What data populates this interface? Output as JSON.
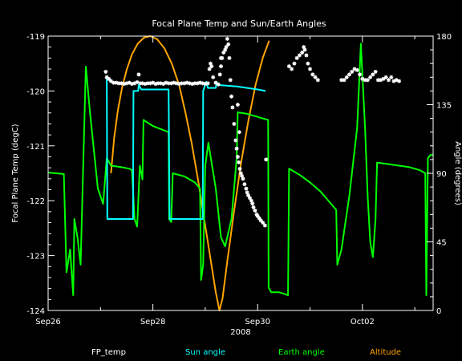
{
  "chart_data": {
    "type": "line",
    "title": "Focal Plane Temp and Sun/Earth Angles",
    "xlabel": "2008",
    "ylabel_left": "Focal Plane Temp (degC)",
    "ylabel_right": "Angle (degrees)",
    "x_unit": "days since Sep26 2008 00:00",
    "x_range": [
      0,
      7.35
    ],
    "x_ticks": [
      {
        "x": 0,
        "label": "Sep26"
      },
      {
        "x": 2,
        "label": "Sep28"
      },
      {
        "x": 4,
        "label": "Sep30"
      },
      {
        "x": 6,
        "label": "Oct02"
      }
    ],
    "ylim_left": [
      -124,
      -119
    ],
    "yticks_left": [
      -124,
      -123,
      -122,
      -121,
      -120,
      -119
    ],
    "ylim_right": [
      0,
      180
    ],
    "yticks_right": [
      0,
      45,
      90,
      135,
      180
    ],
    "grid": false,
    "legend_placement": "bottom",
    "series": [
      {
        "name": "FP_temp",
        "axis": "left",
        "style": "scatter",
        "color": "#ffffff",
        "points": [
          [
            1.1,
            -119.65
          ],
          [
            1.12,
            -119.75
          ],
          [
            1.16,
            -119.78
          ],
          [
            1.2,
            -119.82
          ],
          [
            1.25,
            -119.85
          ],
          [
            1.3,
            -119.85
          ],
          [
            1.35,
            -119.86
          ],
          [
            1.4,
            -119.86
          ],
          [
            1.45,
            -119.87
          ],
          [
            1.5,
            -119.86
          ],
          [
            1.55,
            -119.85
          ],
          [
            1.6,
            -119.87
          ],
          [
            1.65,
            -119.86
          ],
          [
            1.7,
            -119.84
          ],
          [
            1.73,
            -119.7
          ],
          [
            1.76,
            -119.86
          ],
          [
            1.8,
            -119.86
          ],
          [
            1.85,
            -119.87
          ],
          [
            1.9,
            -119.86
          ],
          [
            1.95,
            -119.86
          ],
          [
            2.0,
            -119.85
          ],
          [
            2.05,
            -119.87
          ],
          [
            2.1,
            -119.86
          ],
          [
            2.15,
            -119.86
          ],
          [
            2.2,
            -119.87
          ],
          [
            2.25,
            -119.85
          ],
          [
            2.3,
            -119.86
          ],
          [
            2.35,
            -119.86
          ],
          [
            2.4,
            -119.85
          ],
          [
            2.45,
            -119.86
          ],
          [
            2.5,
            -119.87
          ],
          [
            2.55,
            -119.86
          ],
          [
            2.6,
            -119.86
          ],
          [
            2.65,
            -119.85
          ],
          [
            2.7,
            -119.86
          ],
          [
            2.75,
            -119.87
          ],
          [
            2.8,
            -119.86
          ],
          [
            2.85,
            -119.86
          ],
          [
            2.9,
            -119.85
          ],
          [
            2.95,
            -119.86
          ],
          [
            3.0,
            -119.87
          ],
          [
            3.05,
            -119.86
          ],
          [
            3.08,
            -119.6
          ],
          [
            3.1,
            -119.5
          ],
          [
            3.12,
            -119.55
          ],
          [
            3.15,
            -119.75
          ],
          [
            3.2,
            -119.85
          ],
          [
            3.25,
            -119.88
          ],
          [
            3.28,
            -119.7
          ],
          [
            3.3,
            -119.55
          ],
          [
            3.32,
            -119.4
          ],
          [
            3.35,
            -119.3
          ],
          [
            3.38,
            -119.25
          ],
          [
            3.4,
            -119.2
          ],
          [
            3.42,
            -119.05
          ],
          [
            3.44,
            -119.15
          ],
          [
            3.46,
            -119.4
          ],
          [
            3.48,
            -119.8
          ],
          [
            3.5,
            -120.1
          ],
          [
            3.52,
            -120.3
          ],
          [
            3.55,
            -120.6
          ],
          [
            3.58,
            -120.9
          ],
          [
            3.6,
            -121.05
          ],
          [
            3.62,
            -121.2
          ],
          [
            3.64,
            -121.3
          ],
          [
            3.66,
            -121.42
          ],
          [
            3.68,
            -121.5
          ],
          [
            3.7,
            -121.55
          ],
          [
            3.72,
            -121.6
          ],
          [
            3.75,
            -121.7
          ],
          [
            3.78,
            -121.78
          ],
          [
            3.8,
            -121.85
          ],
          [
            3.82,
            -121.9
          ],
          [
            3.85,
            -121.95
          ],
          [
            3.88,
            -122.0
          ],
          [
            3.9,
            -122.05
          ],
          [
            3.92,
            -122.12
          ],
          [
            3.95,
            -122.18
          ],
          [
            3.98,
            -122.25
          ],
          [
            4.0,
            -122.28
          ],
          [
            4.03,
            -122.32
          ],
          [
            4.06,
            -122.36
          ],
          [
            4.1,
            -122.4
          ],
          [
            4.14,
            -122.45
          ],
          [
            4.16,
            -121.25
          ],
          [
            3.62,
            -120.25
          ],
          [
            3.65,
            -120.75
          ],
          [
            3.3,
            -119.4
          ],
          [
            4.6,
            -119.55
          ],
          [
            4.65,
            -119.6
          ],
          [
            4.7,
            -119.5
          ],
          [
            4.75,
            -119.4
          ],
          [
            4.8,
            -119.35
          ],
          [
            4.85,
            -119.3
          ],
          [
            4.88,
            -119.2
          ],
          [
            4.9,
            -119.25
          ],
          [
            4.93,
            -119.35
          ],
          [
            4.96,
            -119.5
          ],
          [
            5.0,
            -119.6
          ],
          [
            5.05,
            -119.7
          ],
          [
            5.1,
            -119.75
          ],
          [
            5.15,
            -119.8
          ],
          [
            5.6,
            -119.8
          ],
          [
            5.65,
            -119.8
          ],
          [
            5.7,
            -119.75
          ],
          [
            5.75,
            -119.7
          ],
          [
            5.8,
            -119.65
          ],
          [
            5.85,
            -119.6
          ],
          [
            5.9,
            -119.62
          ],
          [
            5.95,
            -119.7
          ],
          [
            6.0,
            -119.78
          ],
          [
            6.05,
            -119.8
          ],
          [
            6.1,
            -119.8
          ],
          [
            6.15,
            -119.75
          ],
          [
            6.2,
            -119.7
          ],
          [
            6.25,
            -119.65
          ],
          [
            6.3,
            -119.8
          ],
          [
            6.35,
            -119.8
          ],
          [
            6.4,
            -119.78
          ],
          [
            6.45,
            -119.75
          ],
          [
            6.5,
            -119.8
          ],
          [
            6.55,
            -119.75
          ],
          [
            6.6,
            -119.82
          ],
          [
            6.65,
            -119.8
          ],
          [
            6.7,
            -119.82
          ]
        ]
      },
      {
        "name": "Sun angle",
        "axis": "right",
        "style": "line",
        "color": "#00ffff",
        "points": [
          [
            1.1,
            152
          ],
          [
            1.12,
            152
          ],
          [
            1.13,
            60
          ],
          [
            1.62,
            60
          ],
          [
            1.63,
            144
          ],
          [
            1.72,
            144
          ],
          [
            1.73,
            148
          ],
          [
            1.78,
            145
          ],
          [
            2.15,
            145
          ],
          [
            2.3,
            145
          ],
          [
            2.32,
            60
          ],
          [
            2.95,
            60
          ],
          [
            2.96,
            144
          ],
          [
            3.02,
            150
          ],
          [
            3.05,
            146
          ],
          [
            3.2,
            146
          ],
          [
            3.21,
            148
          ],
          [
            3.6,
            147
          ],
          [
            4.0,
            145
          ],
          [
            4.15,
            144
          ]
        ]
      },
      {
        "name": "Earth angle",
        "axis": "right",
        "style": "line",
        "color": "#00ff00",
        "points": [
          [
            0.0,
            90.5
          ],
          [
            0.3,
            89.5
          ],
          [
            0.35,
            25
          ],
          [
            0.42,
            40
          ],
          [
            0.48,
            10
          ],
          [
            0.5,
            60
          ],
          [
            0.56,
            48
          ],
          [
            0.62,
            30
          ],
          [
            0.72,
            160
          ],
          [
            0.8,
            130
          ],
          [
            0.95,
            80
          ],
          [
            1.05,
            70
          ],
          [
            1.12,
            100
          ],
          [
            1.2,
            95
          ],
          [
            1.4,
            94
          ],
          [
            1.55,
            93
          ],
          [
            1.6,
            92
          ],
          [
            1.65,
            60
          ],
          [
            1.7,
            55
          ],
          [
            1.75,
            95
          ],
          [
            1.8,
            86
          ],
          [
            1.82,
            125
          ],
          [
            2.0,
            121
          ],
          [
            2.3,
            117
          ],
          [
            2.31,
            60
          ],
          [
            2.35,
            58
          ],
          [
            2.38,
            90
          ],
          [
            2.6,
            88
          ],
          [
            2.8,
            84
          ],
          [
            2.9,
            80
          ],
          [
            2.92,
            20
          ],
          [
            2.96,
            30
          ],
          [
            3.0,
            95
          ],
          [
            3.06,
            110
          ],
          [
            3.2,
            80
          ],
          [
            3.3,
            48
          ],
          [
            3.38,
            42
          ],
          [
            3.5,
            60
          ],
          [
            3.6,
            100
          ],
          [
            3.62,
            130
          ],
          [
            3.8,
            129
          ],
          [
            4.0,
            127
          ],
          [
            4.2,
            125
          ],
          [
            4.21,
            15
          ],
          [
            4.26,
            12
          ],
          [
            4.4,
            12
          ],
          [
            4.5,
            11
          ],
          [
            4.58,
            10
          ],
          [
            4.6,
            93
          ],
          [
            4.8,
            89
          ],
          [
            5.0,
            84
          ],
          [
            5.2,
            78
          ],
          [
            5.4,
            70
          ],
          [
            5.5,
            66
          ],
          [
            5.52,
            30
          ],
          [
            5.6,
            40
          ],
          [
            5.75,
            75
          ],
          [
            5.9,
            120
          ],
          [
            5.97,
            175
          ],
          [
            6.05,
            120
          ],
          [
            6.1,
            75
          ],
          [
            6.15,
            45
          ],
          [
            6.2,
            35
          ],
          [
            6.25,
            60
          ],
          [
            6.28,
            97
          ],
          [
            6.5,
            96
          ],
          [
            6.9,
            94
          ],
          [
            7.1,
            92
          ],
          [
            7.2,
            90
          ],
          [
            7.22,
            10
          ],
          [
            7.25,
            100
          ],
          [
            7.3,
            102
          ],
          [
            7.35,
            102
          ]
        ]
      },
      {
        "name": "Altitude",
        "axis": "right",
        "style": "line",
        "color": "#ffa500",
        "points": [
          [
            1.2,
            90
          ],
          [
            1.26,
            113
          ],
          [
            1.33,
            131
          ],
          [
            1.41,
            146
          ],
          [
            1.5,
            158
          ],
          [
            1.6,
            168
          ],
          [
            1.71,
            175
          ],
          [
            1.83,
            179
          ],
          [
            1.95,
            180
          ],
          [
            2.08,
            178
          ],
          [
            2.22,
            172
          ],
          [
            2.36,
            162
          ],
          [
            2.5,
            148
          ],
          [
            2.62,
            130
          ],
          [
            2.74,
            110
          ],
          [
            2.86,
            86
          ],
          [
            2.98,
            60
          ],
          [
            3.1,
            34
          ],
          [
            3.2,
            12
          ],
          [
            3.27,
            0
          ],
          [
            3.33,
            8
          ],
          [
            3.42,
            32
          ],
          [
            3.55,
            65
          ],
          [
            3.68,
            96
          ],
          [
            3.82,
            124
          ],
          [
            3.96,
            148
          ],
          [
            4.1,
            166
          ],
          [
            4.22,
            177
          ]
        ]
      }
    ]
  }
}
